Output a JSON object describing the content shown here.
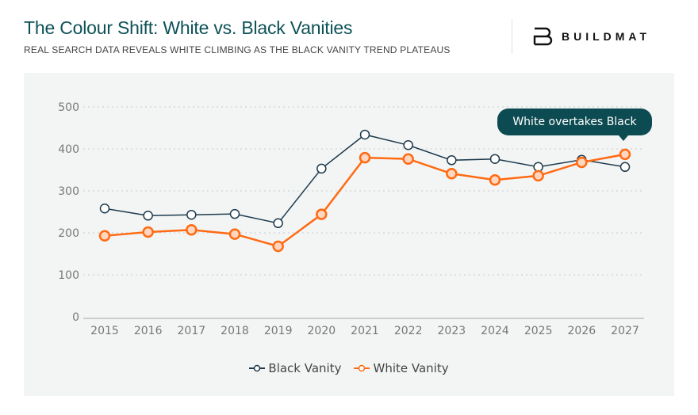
{
  "header": {
    "title": "The Colour Shift: White vs. Black Vanities",
    "subtitle": "REAL SEARCH DATA REVEALS WHITE CLIMBING AS THE BLACK VANITY TREND PLATEAUS",
    "brand": "BUILDMAT"
  },
  "chart_data": {
    "type": "line",
    "x": [
      "2015",
      "2016",
      "2017",
      "2018",
      "2019",
      "2020",
      "2021",
      "2022",
      "2023",
      "2024",
      "2025",
      "2026",
      "2027"
    ],
    "yticks": [
      "0",
      "100",
      "200",
      "300",
      "400",
      "500"
    ],
    "ylim": [
      0,
      500
    ],
    "grid": true,
    "legend_placement": "bottom",
    "series": [
      {
        "name": "Black Vanity",
        "color": "#1e3a4c",
        "values": [
          258,
          241,
          243,
          245,
          223,
          353,
          434,
          409,
          373,
          376,
          357,
          374,
          357
        ]
      },
      {
        "name": "White Vanity",
        "color": "#ff6a13",
        "values": [
          193,
          202,
          207,
          197,
          168,
          244,
          379,
          376,
          341,
          326,
          336,
          368,
          387
        ]
      }
    ],
    "annotation": "White overtakes Black"
  }
}
